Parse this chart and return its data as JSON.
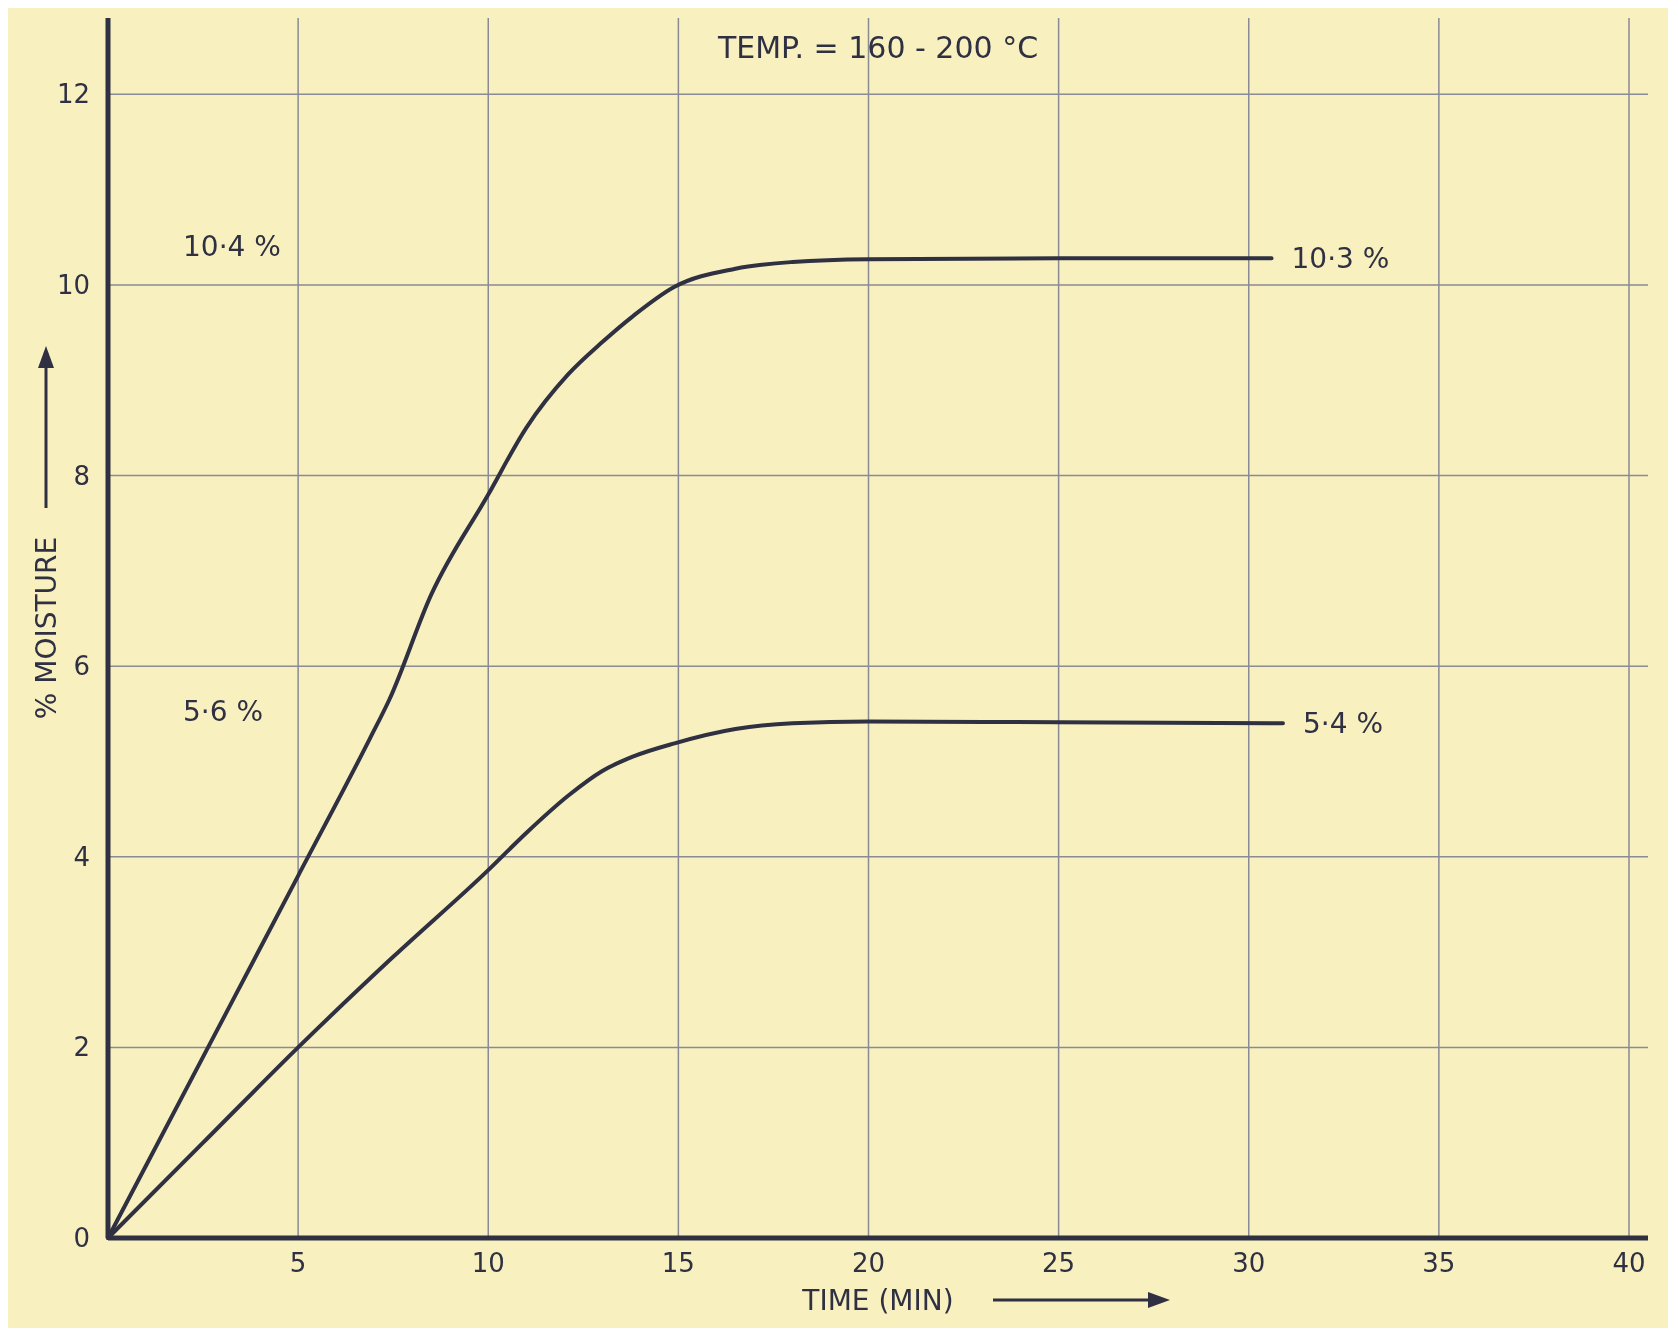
{
  "chart_data": {
    "type": "line",
    "title": "TEMP. = 160 - 200 °C",
    "xlabel": "TIME (MIN)",
    "ylabel": "% MOISTURE",
    "xlim": [
      0,
      40.5
    ],
    "ylim": [
      0,
      12.8
    ],
    "xticks": [
      5,
      10,
      15,
      20,
      25,
      30,
      35,
      40
    ],
    "yticks": [
      0,
      2,
      4,
      6,
      8,
      10,
      12
    ],
    "grid": true,
    "marker": "none",
    "line_style": "solid",
    "series": [
      {
        "color": "#2f3042",
        "x": [
          0,
          2.5,
          5,
          6.9,
          7.4,
          8.5,
          10,
          11,
          12.1,
          13,
          13.8,
          14.9,
          16.5,
          18,
          20,
          25,
          30.6
        ],
        "values": [
          0,
          1.9,
          3.8,
          5.25,
          5.65,
          6.75,
          7.8,
          8.5,
          9.06,
          9.4,
          9.67,
          9.98,
          10.17,
          10.24,
          10.27,
          10.28,
          10.28
        ]
      },
      {
        "color": "#2f3042",
        "x": [
          0,
          2.5,
          5,
          7.5,
          10,
          11,
          12.1,
          13,
          13.8,
          14.9,
          16.5,
          18,
          20,
          25,
          30.9
        ],
        "values": [
          0,
          1.0,
          2.0,
          2.95,
          3.86,
          4.25,
          4.64,
          4.9,
          5.05,
          5.19,
          5.34,
          5.4,
          5.42,
          5.41,
          5.4
        ]
      }
    ],
    "annotations": [
      "10·4 %",
      "5·6 %",
      "10·3 %",
      "5·4 %"
    ]
  }
}
